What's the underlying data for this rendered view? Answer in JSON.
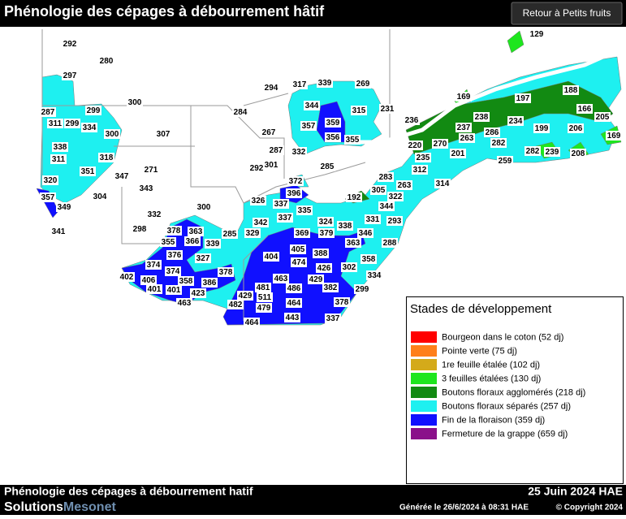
{
  "header": {
    "title": "Phénologie des cépages à débourrement hâtif",
    "button": "Retour à Petits fruits"
  },
  "map": {
    "stations": [
      292,
      280,
      297,
      300,
      287,
      299,
      311,
      299,
      334,
      300,
      307,
      338,
      311,
      318,
      351,
      347,
      271,
      320,
      343,
      304,
      357,
      349,
      332,
      300,
      298,
      341,
      378,
      363,
      355,
      366,
      339,
      285,
      376,
      327,
      374,
      374,
      378,
      402,
      406,
      358,
      386,
      401,
      401,
      423,
      463,
      294,
      317,
      339,
      269,
      231,
      284,
      344,
      315,
      359,
      357,
      356,
      355,
      267,
      287,
      332,
      301,
      292,
      285,
      372,
      396,
      326,
      337,
      335,
      342,
      337,
      329,
      324,
      338,
      331,
      369,
      379,
      346,
      363,
      404,
      405,
      388,
      474,
      426,
      302,
      358,
      288,
      293,
      344,
      322,
      192,
      305,
      263,
      283,
      314,
      312,
      235,
      220,
      270,
      201,
      236,
      237,
      238,
      263,
      286,
      234,
      282,
      259,
      199,
      282,
      239,
      208,
      206,
      169,
      166,
      205,
      197,
      188,
      169,
      129,
      463,
      429,
      334,
      481,
      486,
      382,
      299,
      429,
      511,
      482,
      479,
      464,
      378,
      443,
      337,
      464
    ]
  },
  "legend": {
    "title": "Stades de développement",
    "items": [
      {
        "label": "Bourgeon dans le coton (52 dj)",
        "color": "#ff0000"
      },
      {
        "label": "Pointe verte (75 dj)",
        "color": "#ff7f1a"
      },
      {
        "label": "1re feuille étalée (102 dj)",
        "color": "#d4aa1a"
      },
      {
        "label": "3 feuilles étalées (130 dj)",
        "color": "#1ee61e"
      },
      {
        "label": "Boutons floraux agglomérés (218 dj)",
        "color": "#128a12"
      },
      {
        "label": "Boutons floraux séparés (257 dj)",
        "color": "#1ef0f0"
      },
      {
        "label": "Fin de la floraison (359 dj)",
        "color": "#1010ff"
      },
      {
        "label": "Fermeture de la grappe (659 dj)",
        "color": "#8a108a"
      }
    ]
  },
  "footer": {
    "title": "Phénologie des cépages à débourrement hatif",
    "date": "25 Juin 2024 HAE",
    "brand_a": "Solutions",
    "brand_b": "Mesonet",
    "generated": "Générée le 26/6/2024 à 08:31 HAE",
    "copyright": "© Copyright 2024"
  }
}
